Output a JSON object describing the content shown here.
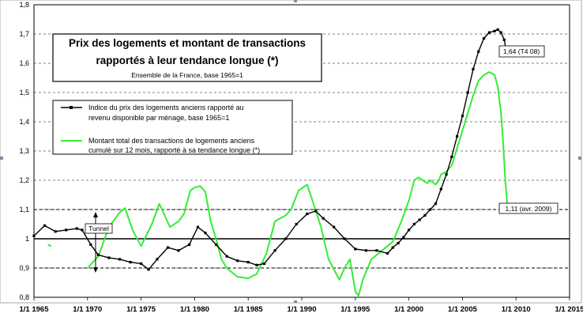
{
  "chart_data": {
    "type": "line",
    "title_line1": "Prix des logements et montant de transactions",
    "title_line2": "rapportés à leur tendance longue (*)",
    "subtitle": "Ensemble de la France, base 1965=1",
    "xlabel": "",
    "ylabel": "",
    "x_range": [
      1965,
      2015
    ],
    "ylim": [
      0.8,
      1.8
    ],
    "y_ticks": [
      "0,8",
      "0,9",
      "1",
      "1,1",
      "1,2",
      "1,3",
      "1,4",
      "1,5",
      "1,6",
      "1,7",
      "1,8"
    ],
    "x_ticks": [
      {
        "x": 1965,
        "label": "1/1 1965"
      },
      {
        "x": 1970,
        "label": "1/1 1970"
      },
      {
        "x": 1975,
        "label": "1/1 1975"
      },
      {
        "x": 1980,
        "label": "1/1 1980"
      },
      {
        "x": 1985,
        "label": "1/1 1985"
      },
      {
        "x": 1990,
        "label": "1/1 1990"
      },
      {
        "x": 1995,
        "label": "1/1 1995"
      },
      {
        "x": 2000,
        "label": "1/1 2000"
      },
      {
        "x": 2005,
        "label": "1/1 2005"
      },
      {
        "x": 2010,
        "label": "1/1 2010"
      },
      {
        "x": 2015,
        "label": "1/1 2015"
      }
    ],
    "grid": {
      "horizontal": true,
      "style": "dashed"
    },
    "reference_line": 1.0,
    "tunnel_band": [
      0.9,
      1.1
    ],
    "legend": {
      "placement": "center-left",
      "series1_line1": "Indice du prix des logements anciens rapporté au",
      "series1_line2": "revenu disponible par ménage, base 1965=1",
      "series2_line1": "Montant total des transactions de logements anciens",
      "series2_line2": "cumulé sur 12 mois, rapporté à sa tendance longue (*)"
    },
    "annotations": {
      "tunnel": "Tunnel",
      "price_end": "1,64 (T4 08)",
      "trans_end": "1,11 (avr. 2009)"
    },
    "series": [
      {
        "id": "price",
        "color": "#000000",
        "points": [
          [
            1965.0,
            1.01
          ],
          [
            1966.0,
            1.045
          ],
          [
            1967.0,
            1.025
          ],
          [
            1968.0,
            1.03
          ],
          [
            1969.0,
            1.035
          ],
          [
            1969.5,
            1.03
          ],
          [
            1970.3,
            0.98
          ],
          [
            1971.0,
            0.945
          ],
          [
            1972.0,
            0.935
          ],
          [
            1973.0,
            0.93
          ],
          [
            1974.0,
            0.92
          ],
          [
            1975.0,
            0.915
          ],
          [
            1975.7,
            0.895
          ],
          [
            1976.5,
            0.93
          ],
          [
            1977.5,
            0.97
          ],
          [
            1978.5,
            0.96
          ],
          [
            1979.5,
            0.98
          ],
          [
            1980.3,
            1.04
          ],
          [
            1981.0,
            1.02
          ],
          [
            1982.0,
            0.98
          ],
          [
            1983.0,
            0.94
          ],
          [
            1984.0,
            0.925
          ],
          [
            1985.0,
            0.92
          ],
          [
            1985.8,
            0.91
          ],
          [
            1986.5,
            0.915
          ],
          [
            1987.5,
            0.96
          ],
          [
            1988.5,
            1.0
          ],
          [
            1989.5,
            1.05
          ],
          [
            1990.5,
            1.085
          ],
          [
            1991.3,
            1.095
          ],
          [
            1992.0,
            1.07
          ],
          [
            1993.0,
            1.04
          ],
          [
            1994.0,
            1.0
          ],
          [
            1995.0,
            0.965
          ],
          [
            1996.0,
            0.96
          ],
          [
            1997.0,
            0.96
          ],
          [
            1998.0,
            0.95
          ],
          [
            1998.5,
            0.97
          ],
          [
            1999.0,
            0.985
          ],
          [
            1999.5,
            1.005
          ],
          [
            2000.0,
            1.03
          ],
          [
            2000.5,
            1.05
          ],
          [
            2001.0,
            1.065
          ],
          [
            2001.5,
            1.08
          ],
          [
            2002.0,
            1.1
          ],
          [
            2002.5,
            1.12
          ],
          [
            2003.0,
            1.17
          ],
          [
            2003.5,
            1.22
          ],
          [
            2004.0,
            1.28
          ],
          [
            2004.5,
            1.35
          ],
          [
            2005.0,
            1.42
          ],
          [
            2005.5,
            1.5
          ],
          [
            2006.0,
            1.58
          ],
          [
            2006.5,
            1.64
          ],
          [
            2007.0,
            1.685
          ],
          [
            2007.5,
            1.705
          ],
          [
            2008.0,
            1.71
          ],
          [
            2008.3,
            1.715
          ],
          [
            2008.6,
            1.705
          ],
          [
            2008.9,
            1.68
          ],
          [
            2009.1,
            1.64
          ]
        ]
      },
      {
        "id": "transactions",
        "color": "#33ee33",
        "segments": [
          [
            [
              1966.3,
              0.98
            ],
            [
              1966.6,
              0.975
            ]
          ],
          [
            [
              1970.0,
              0.9
            ],
            [
              1971.0,
              0.94
            ],
            [
              1972.0,
              1.04
            ],
            [
              1973.0,
              1.09
            ],
            [
              1973.5,
              1.105
            ],
            [
              1974.2,
              1.03
            ],
            [
              1975.0,
              0.975
            ],
            [
              1976.0,
              1.05
            ],
            [
              1976.7,
              1.12
            ],
            [
              1977.2,
              1.08
            ],
            [
              1977.7,
              1.04
            ],
            [
              1978.5,
              1.06
            ],
            [
              1979.0,
              1.085
            ],
            [
              1979.6,
              1.165
            ],
            [
              1980.0,
              1.175
            ],
            [
              1980.5,
              1.18
            ],
            [
              1981.0,
              1.16
            ],
            [
              1981.5,
              1.06
            ],
            [
              1982.0,
              1.0
            ],
            [
              1982.5,
              0.93
            ],
            [
              1983.0,
              0.9
            ],
            [
              1983.5,
              0.885
            ],
            [
              1984.0,
              0.87
            ],
            [
              1985.0,
              0.865
            ],
            [
              1985.8,
              0.88
            ],
            [
              1986.7,
              0.95
            ],
            [
              1987.5,
              1.06
            ],
            [
              1988.5,
              1.08
            ],
            [
              1989.0,
              1.1
            ],
            [
              1989.7,
              1.165
            ],
            [
              1990.5,
              1.185
            ],
            [
              1991.0,
              1.13
            ],
            [
              1991.8,
              1.04
            ],
            [
              1992.5,
              0.93
            ],
            [
              1993.5,
              0.86
            ],
            [
              1994.0,
              0.9
            ],
            [
              1994.5,
              0.93
            ],
            [
              1995.0,
              0.82
            ],
            [
              1995.3,
              0.805
            ],
            [
              1995.7,
              0.86
            ],
            [
              1996.5,
              0.93
            ],
            [
              1997.5,
              0.96
            ],
            [
              1998.5,
              0.99
            ],
            [
              1999.3,
              1.06
            ],
            [
              2000.0,
              1.13
            ],
            [
              2000.5,
              1.2
            ],
            [
              2000.9,
              1.21
            ],
            [
              2001.3,
              1.2
            ],
            [
              2001.7,
              1.19
            ],
            [
              2002.0,
              1.2
            ],
            [
              2002.5,
              1.185
            ],
            [
              2002.8,
              1.2
            ],
            [
              2003.0,
              1.22
            ],
            [
              2003.5,
              1.23
            ],
            [
              2004.0,
              1.25
            ],
            [
              2004.5,
              1.31
            ],
            [
              2005.0,
              1.37
            ],
            [
              2005.5,
              1.43
            ],
            [
              2006.0,
              1.49
            ],
            [
              2006.5,
              1.54
            ],
            [
              2007.0,
              1.56
            ],
            [
              2007.5,
              1.57
            ],
            [
              2008.0,
              1.56
            ],
            [
              2008.3,
              1.52
            ],
            [
              2008.6,
              1.43
            ],
            [
              2008.8,
              1.33
            ],
            [
              2009.0,
              1.2
            ],
            [
              2009.2,
              1.11
            ]
          ]
        ]
      }
    ]
  }
}
